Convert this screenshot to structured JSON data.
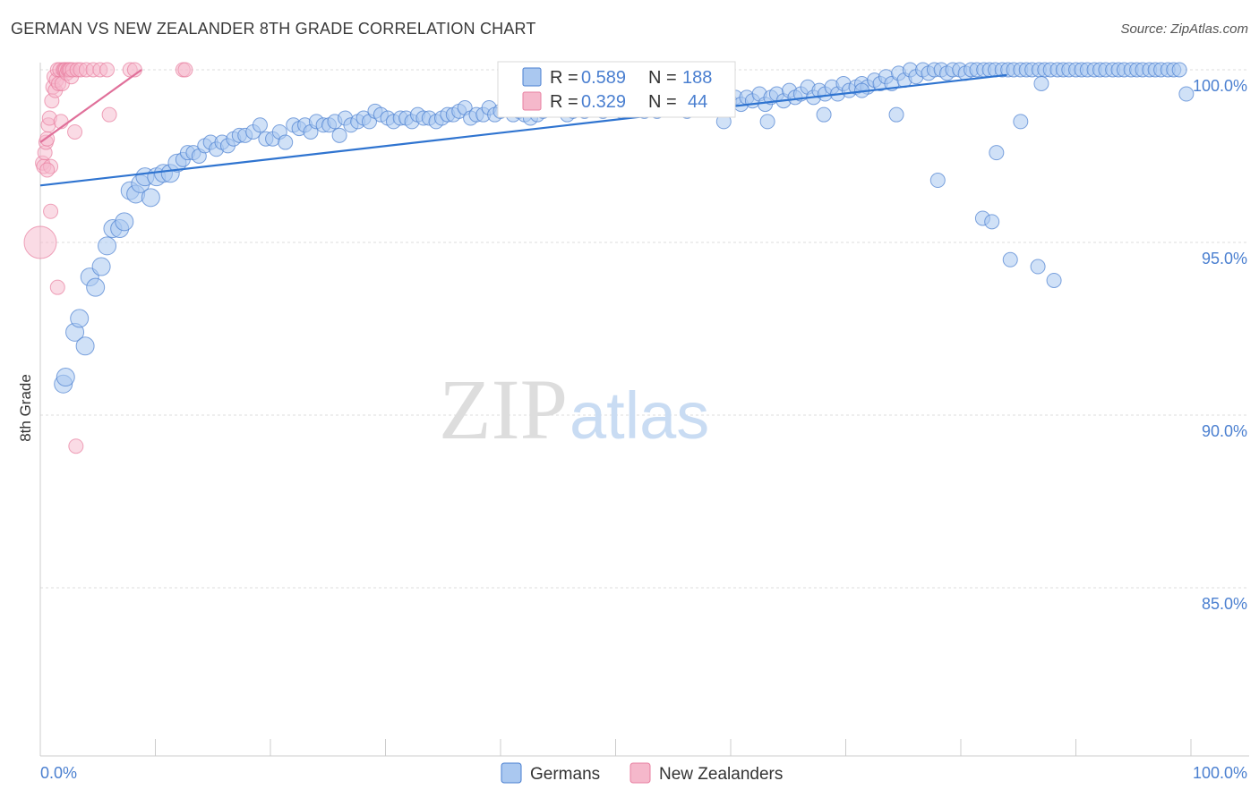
{
  "title": "GERMAN VS NEW ZEALANDER 8TH GRADE CORRELATION CHART",
  "source": "Source: ZipAtlas.com",
  "watermark": {
    "zip": "ZIP",
    "atlas": "atlas"
  },
  "colors": {
    "blue": "#4a7fd0",
    "blue_fill": "#aac8f0",
    "blue_line": "#2f74d0",
    "pink": "#e87fa0",
    "pink_fill": "#f5b8cb",
    "pink_line": "#e0709a",
    "grid": "#dddddd"
  },
  "legend_top": [
    {
      "r_label": "R =",
      "r_value": "0.589",
      "n_label": "N =",
      "n_value": "188"
    },
    {
      "r_label": "R =",
      "r_value": "0.329",
      "n_label": "N =",
      "n_value": "44"
    }
  ],
  "legend_bottom": [
    "Germans",
    "New Zealanders"
  ],
  "chart_data": {
    "type": "scatter",
    "title": "GERMAN VS NEW ZEALANDER 8TH GRADE CORRELATION CHART",
    "xlabel": "",
    "ylabel": "8th Grade",
    "xlim": [
      0,
      100
    ],
    "ylim": [
      80.5,
      100.7
    ],
    "x_tick_labels": [
      "0.0%",
      "100.0%"
    ],
    "y_ticks": [
      85,
      90,
      95,
      100
    ],
    "y_tick_labels": [
      "85.0%",
      "90.0%",
      "95.0%",
      "100.0%"
    ],
    "series": [
      {
        "name": "Germans",
        "R": 0.589,
        "N": 188,
        "trend": {
          "x": [
            0,
            84
          ],
          "y": [
            96.65,
            99.85
          ]
        },
        "points": [
          [
            2.0,
            90.9
          ],
          [
            2.2,
            91.1
          ],
          [
            3.0,
            92.4
          ],
          [
            3.4,
            92.8
          ],
          [
            3.9,
            92.0
          ],
          [
            4.3,
            94.0
          ],
          [
            4.8,
            93.7
          ],
          [
            5.3,
            94.3
          ],
          [
            5.8,
            94.9
          ],
          [
            6.3,
            95.4
          ],
          [
            6.9,
            95.4
          ],
          [
            7.3,
            95.6
          ],
          [
            7.8,
            96.5
          ],
          [
            8.3,
            96.4
          ],
          [
            8.7,
            96.7
          ],
          [
            9.1,
            96.9
          ],
          [
            9.6,
            96.3
          ],
          [
            10.1,
            96.9
          ],
          [
            10.7,
            97.0
          ],
          [
            11.3,
            97.0
          ],
          [
            11.9,
            97.3
          ],
          [
            12.4,
            97.4
          ],
          [
            12.8,
            97.6
          ],
          [
            13.3,
            97.6
          ],
          [
            13.8,
            97.5
          ],
          [
            14.3,
            97.8
          ],
          [
            14.8,
            97.9
          ],
          [
            15.3,
            97.7
          ],
          [
            15.8,
            97.9
          ],
          [
            16.3,
            97.8
          ],
          [
            16.8,
            98.0
          ],
          [
            17.3,
            98.1
          ],
          [
            17.8,
            98.1
          ],
          [
            18.5,
            98.2
          ],
          [
            19.1,
            98.4
          ],
          [
            19.6,
            98.0
          ],
          [
            20.2,
            98.0
          ],
          [
            20.8,
            98.2
          ],
          [
            21.3,
            97.9
          ],
          [
            22.0,
            98.4
          ],
          [
            22.5,
            98.3
          ],
          [
            23.0,
            98.4
          ],
          [
            23.5,
            98.2
          ],
          [
            24.0,
            98.5
          ],
          [
            24.6,
            98.4
          ],
          [
            25.1,
            98.4
          ],
          [
            25.6,
            98.5
          ],
          [
            26.0,
            98.1
          ],
          [
            26.5,
            98.6
          ],
          [
            27.0,
            98.4
          ],
          [
            27.6,
            98.5
          ],
          [
            28.1,
            98.6
          ],
          [
            28.6,
            98.5
          ],
          [
            29.1,
            98.8
          ],
          [
            29.6,
            98.7
          ],
          [
            30.2,
            98.6
          ],
          [
            30.7,
            98.5
          ],
          [
            31.3,
            98.6
          ],
          [
            31.8,
            98.6
          ],
          [
            32.3,
            98.5
          ],
          [
            32.8,
            98.7
          ],
          [
            33.3,
            98.6
          ],
          [
            33.8,
            98.6
          ],
          [
            34.4,
            98.5
          ],
          [
            34.9,
            98.6
          ],
          [
            35.4,
            98.7
          ],
          [
            35.9,
            98.7
          ],
          [
            36.4,
            98.8
          ],
          [
            36.9,
            98.9
          ],
          [
            37.4,
            98.6
          ],
          [
            37.9,
            98.7
          ],
          [
            38.5,
            98.7
          ],
          [
            39.0,
            98.9
          ],
          [
            39.5,
            98.7
          ],
          [
            40.0,
            98.8
          ],
          [
            40.6,
            98.9
          ],
          [
            41.1,
            98.7
          ],
          [
            41.6,
            98.8
          ],
          [
            42.1,
            98.7
          ],
          [
            42.6,
            98.6
          ],
          [
            43.2,
            98.7
          ],
          [
            43.7,
            98.8
          ],
          [
            44.2,
            98.9
          ],
          [
            44.7,
            99.0
          ],
          [
            45.2,
            98.9
          ],
          [
            45.8,
            98.7
          ],
          [
            46.3,
            98.8
          ],
          [
            46.8,
            99.0
          ],
          [
            47.3,
            98.8
          ],
          [
            47.8,
            98.9
          ],
          [
            48.4,
            99.1
          ],
          [
            48.9,
            98.8
          ],
          [
            49.4,
            98.9
          ],
          [
            49.9,
            99.0
          ],
          [
            50.5,
            98.8
          ],
          [
            51.0,
            99.0
          ],
          [
            51.5,
            98.9
          ],
          [
            52.0,
            99.2
          ],
          [
            52.5,
            98.8
          ],
          [
            53.1,
            99.0
          ],
          [
            53.6,
            98.8
          ],
          [
            54.1,
            99.0
          ],
          [
            54.6,
            99.1
          ],
          [
            55.1,
            99.0
          ],
          [
            55.7,
            99.2
          ],
          [
            56.2,
            98.8
          ],
          [
            56.7,
            99.1
          ],
          [
            57.2,
            99.2
          ],
          [
            57.8,
            98.9
          ],
          [
            58.3,
            99.0
          ],
          [
            58.8,
            99.3
          ],
          [
            59.3,
            99.0
          ],
          [
            59.9,
            99.1
          ],
          [
            60.4,
            99.2
          ],
          [
            60.9,
            99.0
          ],
          [
            61.4,
            99.2
          ],
          [
            61.9,
            99.1
          ],
          [
            62.5,
            99.3
          ],
          [
            63.0,
            99.0
          ],
          [
            63.5,
            99.2
          ],
          [
            64.0,
            99.3
          ],
          [
            64.6,
            99.1
          ],
          [
            65.1,
            99.4
          ],
          [
            65.6,
            99.2
          ],
          [
            66.1,
            99.3
          ],
          [
            66.7,
            99.5
          ],
          [
            67.2,
            99.2
          ],
          [
            67.7,
            99.4
          ],
          [
            68.2,
            99.3
          ],
          [
            68.8,
            99.5
          ],
          [
            69.3,
            99.3
          ],
          [
            69.8,
            99.6
          ],
          [
            70.3,
            99.4
          ],
          [
            70.9,
            99.5
          ],
          [
            71.4,
            99.6
          ],
          [
            71.9,
            99.5
          ],
          [
            72.5,
            99.7
          ],
          [
            73.0,
            99.6
          ],
          [
            73.5,
            99.8
          ],
          [
            74.0,
            99.6
          ],
          [
            74.6,
            99.9
          ],
          [
            75.1,
            99.7
          ],
          [
            75.6,
            100.0
          ],
          [
            76.1,
            99.8
          ],
          [
            76.7,
            100.0
          ],
          [
            77.2,
            99.9
          ],
          [
            77.7,
            100.0
          ],
          [
            78.3,
            100.0
          ],
          [
            78.8,
            99.9
          ],
          [
            79.3,
            100.0
          ],
          [
            79.9,
            100.0
          ],
          [
            80.4,
            99.9
          ],
          [
            80.9,
            100.0
          ],
          [
            81.4,
            100.0
          ],
          [
            82.0,
            100.0
          ],
          [
            82.5,
            100.0
          ],
          [
            83.0,
            100.0
          ],
          [
            83.6,
            100.0
          ],
          [
            84.1,
            100.0
          ],
          [
            84.6,
            100.0
          ],
          [
            85.2,
            100.0
          ],
          [
            85.7,
            100.0
          ],
          [
            86.2,
            100.0
          ],
          [
            86.8,
            100.0
          ],
          [
            87.3,
            100.0
          ],
          [
            87.8,
            100.0
          ],
          [
            88.4,
            100.0
          ],
          [
            88.9,
            100.0
          ],
          [
            89.4,
            100.0
          ],
          [
            90.0,
            100.0
          ],
          [
            90.5,
            100.0
          ],
          [
            91.0,
            100.0
          ],
          [
            91.6,
            100.0
          ],
          [
            92.1,
            100.0
          ],
          [
            92.6,
            100.0
          ],
          [
            93.2,
            100.0
          ],
          [
            93.7,
            100.0
          ],
          [
            94.2,
            100.0
          ],
          [
            94.8,
            100.0
          ],
          [
            95.3,
            100.0
          ],
          [
            95.8,
            100.0
          ],
          [
            96.4,
            100.0
          ],
          [
            96.9,
            100.0
          ],
          [
            97.4,
            100.0
          ],
          [
            98.0,
            100.0
          ],
          [
            98.5,
            100.0
          ],
          [
            99.0,
            100.0
          ],
          [
            99.6,
            99.3
          ],
          [
            68.1,
            98.7
          ],
          [
            71.4,
            99.4
          ],
          [
            74.4,
            98.7
          ],
          [
            87.0,
            99.6
          ],
          [
            85.2,
            98.5
          ],
          [
            78.0,
            96.8
          ],
          [
            81.9,
            95.7
          ],
          [
            82.7,
            95.6
          ],
          [
            84.3,
            94.5
          ],
          [
            86.7,
            94.3
          ],
          [
            88.1,
            93.9
          ],
          [
            83.1,
            97.6
          ],
          [
            59.4,
            98.5
          ],
          [
            63.2,
            98.5
          ],
          [
            51.3,
            99.0
          ]
        ]
      },
      {
        "name": "New Zealanders",
        "R": 0.329,
        "N": 44,
        "trend": {
          "x": [
            0,
            8.8
          ],
          "y": [
            97.9,
            100.0
          ]
        },
        "points": [
          [
            0.0,
            95.0
          ],
          [
            0.2,
            97.3
          ],
          [
            0.3,
            97.2
          ],
          [
            0.4,
            97.6
          ],
          [
            0.5,
            97.9
          ],
          [
            0.6,
            98.0
          ],
          [
            0.7,
            98.4
          ],
          [
            0.8,
            98.6
          ],
          [
            0.9,
            97.2
          ],
          [
            1.0,
            99.1
          ],
          [
            1.1,
            99.5
          ],
          [
            1.2,
            99.8
          ],
          [
            1.3,
            99.4
          ],
          [
            1.4,
            99.7
          ],
          [
            1.5,
            100.0
          ],
          [
            1.6,
            99.6
          ],
          [
            1.7,
            100.0
          ],
          [
            1.8,
            98.5
          ],
          [
            1.9,
            99.6
          ],
          [
            2.0,
            100.0
          ],
          [
            2.1,
            100.0
          ],
          [
            2.2,
            100.0
          ],
          [
            2.3,
            99.9
          ],
          [
            2.4,
            100.0
          ],
          [
            2.5,
            100.0
          ],
          [
            2.6,
            100.0
          ],
          [
            2.7,
            99.8
          ],
          [
            2.8,
            100.0
          ],
          [
            3.0,
            98.2
          ],
          [
            3.2,
            100.0
          ],
          [
            3.5,
            100.0
          ],
          [
            4.0,
            100.0
          ],
          [
            4.6,
            100.0
          ],
          [
            5.2,
            100.0
          ],
          [
            5.8,
            100.0
          ],
          [
            6.0,
            98.7
          ],
          [
            7.8,
            100.0
          ],
          [
            8.2,
            100.0
          ],
          [
            12.4,
            100.0
          ],
          [
            12.6,
            100.0
          ],
          [
            0.9,
            95.9
          ],
          [
            1.5,
            93.7
          ],
          [
            3.1,
            89.1
          ],
          [
            0.6,
            97.1
          ]
        ]
      }
    ]
  }
}
